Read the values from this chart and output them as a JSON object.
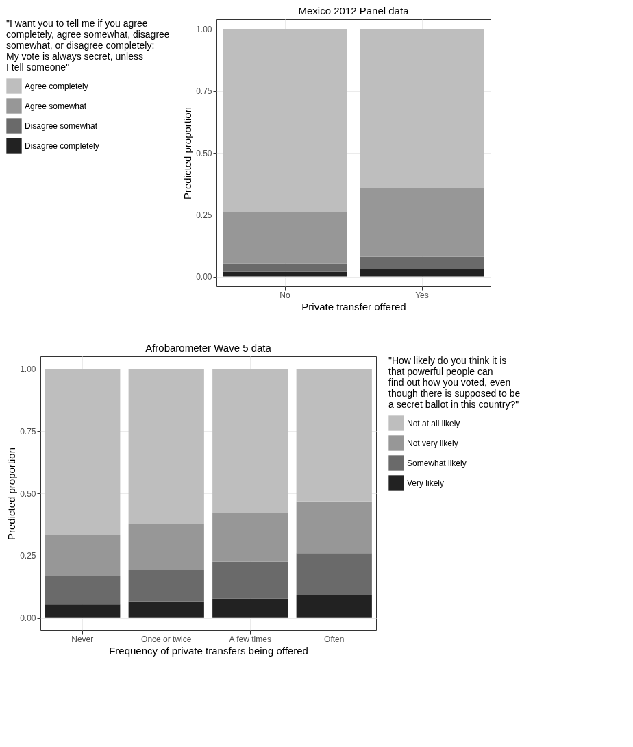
{
  "chart_data": [
    {
      "type": "bar",
      "title": "Mexico 2012 Panel data",
      "xlabel": "Private transfer offered",
      "ylabel": "Predicted proportion",
      "legend_title": "\"I want you to tell me if you agree\ncompletely, agree somewhat, disagree\nsomewhat, or disagree completely:\nMy vote is always secret, unless\nI tell someone\"",
      "categories": [
        "No",
        "Yes"
      ],
      "stacked": true,
      "legend": "left",
      "grid": true,
      "ylim": [
        -0.04,
        1.04
      ],
      "yticks": [
        {
          "value": 0,
          "label": "0.00"
        },
        {
          "value": 0.25,
          "label": "0.25"
        },
        {
          "value": 0.5,
          "label": "0.50"
        },
        {
          "value": 0.75,
          "label": "0.75"
        },
        {
          "value": 1,
          "label": "1.00"
        }
      ],
      "series": [
        {
          "name": "Disagree completely",
          "color": "#222222",
          "values": [
            0.019,
            0.029
          ]
        },
        {
          "name": "Disagree somewhat",
          "color": "#6a6a6a",
          "values": [
            0.034,
            0.051
          ]
        },
        {
          "name": "Agree somewhat",
          "color": "#979797",
          "values": [
            0.208,
            0.276
          ]
        },
        {
          "name": "Agree completely",
          "color": "#bebebe",
          "values": [
            0.739,
            0.644
          ]
        }
      ]
    },
    {
      "type": "bar",
      "title": "Afrobarometer Wave 5 data",
      "xlabel": "Frequency of private transfers being offered",
      "ylabel": "Predicted proportion",
      "legend_title": "\"How likely do you think it is\nthat powerful people can\nfind out how you voted, even\nthough  there is supposed to be\na secret ballot in this country?\"",
      "categories": [
        "Never",
        "Once or twice",
        "A few times",
        "Often"
      ],
      "stacked": true,
      "legend": "right",
      "grid": true,
      "ylim": [
        -0.05,
        1.05
      ],
      "yticks": [
        {
          "value": 0,
          "label": "0.00"
        },
        {
          "value": 0.25,
          "label": "0.25"
        },
        {
          "value": 0.5,
          "label": "0.50"
        },
        {
          "value": 0.75,
          "label": "0.75"
        },
        {
          "value": 1,
          "label": "1.00"
        }
      ],
      "series": [
        {
          "name": "Very likely",
          "color": "#222222",
          "values": [
            0.054,
            0.066,
            0.078,
            0.093
          ]
        },
        {
          "name": "Somewhat likely",
          "color": "#6a6a6a",
          "values": [
            0.113,
            0.129,
            0.148,
            0.167
          ]
        },
        {
          "name": "Not very likely",
          "color": "#979797",
          "values": [
            0.168,
            0.183,
            0.196,
            0.208
          ]
        },
        {
          "name": "Not at all likely",
          "color": "#bebebe",
          "values": [
            0.665,
            0.622,
            0.578,
            0.532
          ]
        }
      ]
    }
  ]
}
